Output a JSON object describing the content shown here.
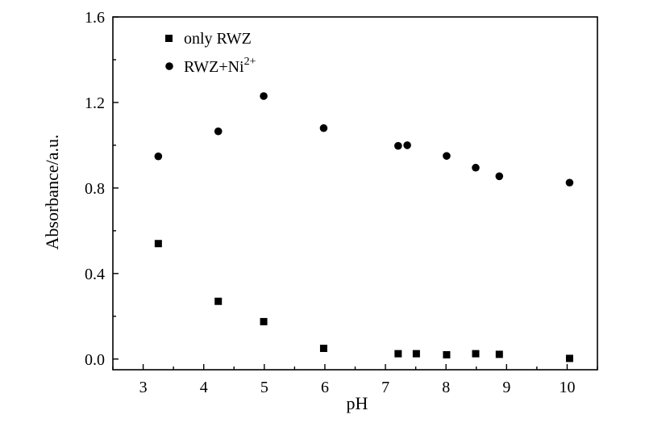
{
  "chart_data": {
    "type": "scatter",
    "xlabel": "pH",
    "ylabel": "Absorbance/a.u.",
    "xlim": [
      2.5,
      10.5
    ],
    "ylim": [
      -0.05,
      1.6
    ],
    "xticks": [
      3,
      4,
      5,
      6,
      7,
      8,
      9,
      10
    ],
    "yticks": [
      0.0,
      0.4,
      0.8,
      1.2,
      1.6
    ],
    "ytick_labels": [
      "0.0",
      "0.4",
      "0.8",
      "1.2",
      "1.6"
    ],
    "legend_position": "top-left",
    "grid": false,
    "series": [
      {
        "name": "only RWZ",
        "marker": "square",
        "color": "#000000",
        "x": [
          3.25,
          4.24,
          4.99,
          5.98,
          7.21,
          7.51,
          8.01,
          8.49,
          8.88,
          10.04
        ],
        "y": [
          0.54,
          0.27,
          0.175,
          0.05,
          0.025,
          0.025,
          0.02,
          0.025,
          0.022,
          0.003
        ]
      },
      {
        "name_main": "RWZ+Ni",
        "name_sup": "2+",
        "marker": "circle",
        "color": "#000000",
        "x": [
          3.25,
          4.24,
          4.99,
          5.98,
          7.21,
          7.36,
          8.01,
          8.49,
          8.88,
          10.04
        ],
        "y": [
          0.948,
          1.065,
          1.23,
          1.08,
          0.997,
          1.0,
          0.95,
          0.895,
          0.855,
          0.825
        ]
      }
    ]
  }
}
